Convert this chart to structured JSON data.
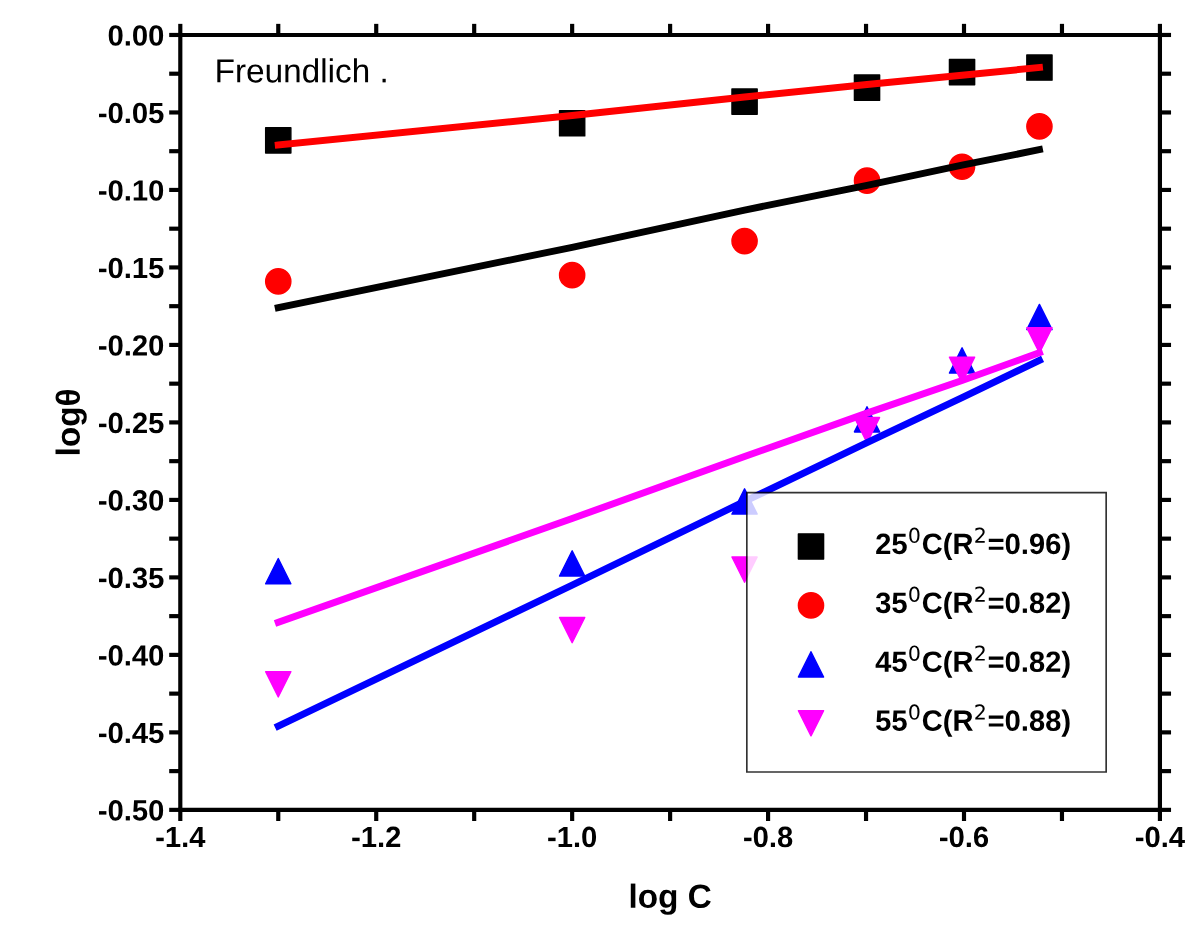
{
  "chart_data": {
    "type": "scatter",
    "xlabel": "log C",
    "ylabel": "logθ",
    "annotations": [
      "Freundlich ."
    ],
    "xlim": [
      -1.4,
      -0.4
    ],
    "ylim": [
      -0.5,
      0.0
    ],
    "xticks": [
      {
        "value": -1.4,
        "label": "-1.4"
      },
      {
        "value": -1.3,
        "label": null
      },
      {
        "value": -1.2,
        "label": "-1.2"
      },
      {
        "value": -1.1,
        "label": null
      },
      {
        "value": -1.0,
        "label": "-1.0"
      },
      {
        "value": -0.9,
        "label": null
      },
      {
        "value": -0.8,
        "label": "-0.8"
      },
      {
        "value": -0.7,
        "label": null
      },
      {
        "value": -0.6,
        "label": "-0.6"
      },
      {
        "value": -0.5,
        "label": null
      },
      {
        "value": -0.4,
        "label": "-0.4"
      }
    ],
    "yticks": [
      {
        "value": -0.5,
        "label": "-0.50"
      },
      {
        "value": -0.475,
        "label": null
      },
      {
        "value": -0.45,
        "label": "-0.45"
      },
      {
        "value": -0.425,
        "label": null
      },
      {
        "value": -0.4,
        "label": "-0.40"
      },
      {
        "value": -0.375,
        "label": null
      },
      {
        "value": -0.35,
        "label": "-0.35"
      },
      {
        "value": -0.325,
        "label": null
      },
      {
        "value": -0.3,
        "label": "-0.30"
      },
      {
        "value": -0.275,
        "label": null
      },
      {
        "value": -0.25,
        "label": "-0.25"
      },
      {
        "value": -0.225,
        "label": null
      },
      {
        "value": -0.2,
        "label": "-0.20"
      },
      {
        "value": -0.175,
        "label": null
      },
      {
        "value": -0.15,
        "label": "-0.15"
      },
      {
        "value": -0.125,
        "label": null
      },
      {
        "value": -0.1,
        "label": "-0.10"
      },
      {
        "value": -0.075,
        "label": null
      },
      {
        "value": -0.05,
        "label": "-0.05"
      },
      {
        "value": -0.025,
        "label": null
      },
      {
        "value": 0.0,
        "label": "0.00"
      }
    ],
    "grid": false,
    "legend": "bottom right",
    "x": [
      -1.3,
      -1.0,
      -0.824,
      -0.699,
      -0.602,
      -0.523
    ],
    "series": [
      {
        "name": "25$^{0}$C(R$^{2}$=0.96)",
        "color": "#000000",
        "marker": "square",
        "values": [
          -0.068,
          -0.057,
          -0.043,
          -0.034,
          -0.024,
          -0.021
        ]
      },
      {
        "name": "35$^{0}$C(R$^{2}$=0.82)",
        "color": "#ff0000",
        "marker": "circle",
        "values": [
          -0.159,
          -0.155,
          -0.133,
          -0.094,
          -0.085,
          -0.059
        ]
      },
      {
        "name": "45$^{0}$C(R$^{2}$=0.82)",
        "color": "#0000ff",
        "marker": "triangle",
        "values": [
          -0.346,
          -0.341,
          -0.301,
          -0.248,
          -0.21,
          -0.182
        ]
      },
      {
        "name": "55$^{0}$C(R$^{2}$=0.88)",
        "color": "#ff00ff",
        "marker": "triangle_down",
        "values": [
          -0.419,
          -0.384,
          -0.345,
          -0.255,
          -0.216,
          -0.197
        ]
      },
      {
        "type": "line",
        "color": "#ff0000",
        "values": [
          -0.071,
          -0.052,
          -0.04,
          -0.032,
          -0.026,
          -0.021
        ]
      },
      {
        "type": "line",
        "color": "#000000",
        "values": [
          -0.176,
          -0.137,
          -0.113,
          -0.097,
          -0.084,
          -0.074
        ]
      },
      {
        "type": "line",
        "color": "#0000ff",
        "values": [
          -0.446,
          -0.355,
          -0.301,
          -0.263,
          -0.234,
          -0.21
        ]
      },
      {
        "type": "line",
        "color": "#ff00ff",
        "values": [
          -0.379,
          -0.312,
          -0.272,
          -0.244,
          -0.223,
          -0.205
        ]
      }
    ]
  }
}
